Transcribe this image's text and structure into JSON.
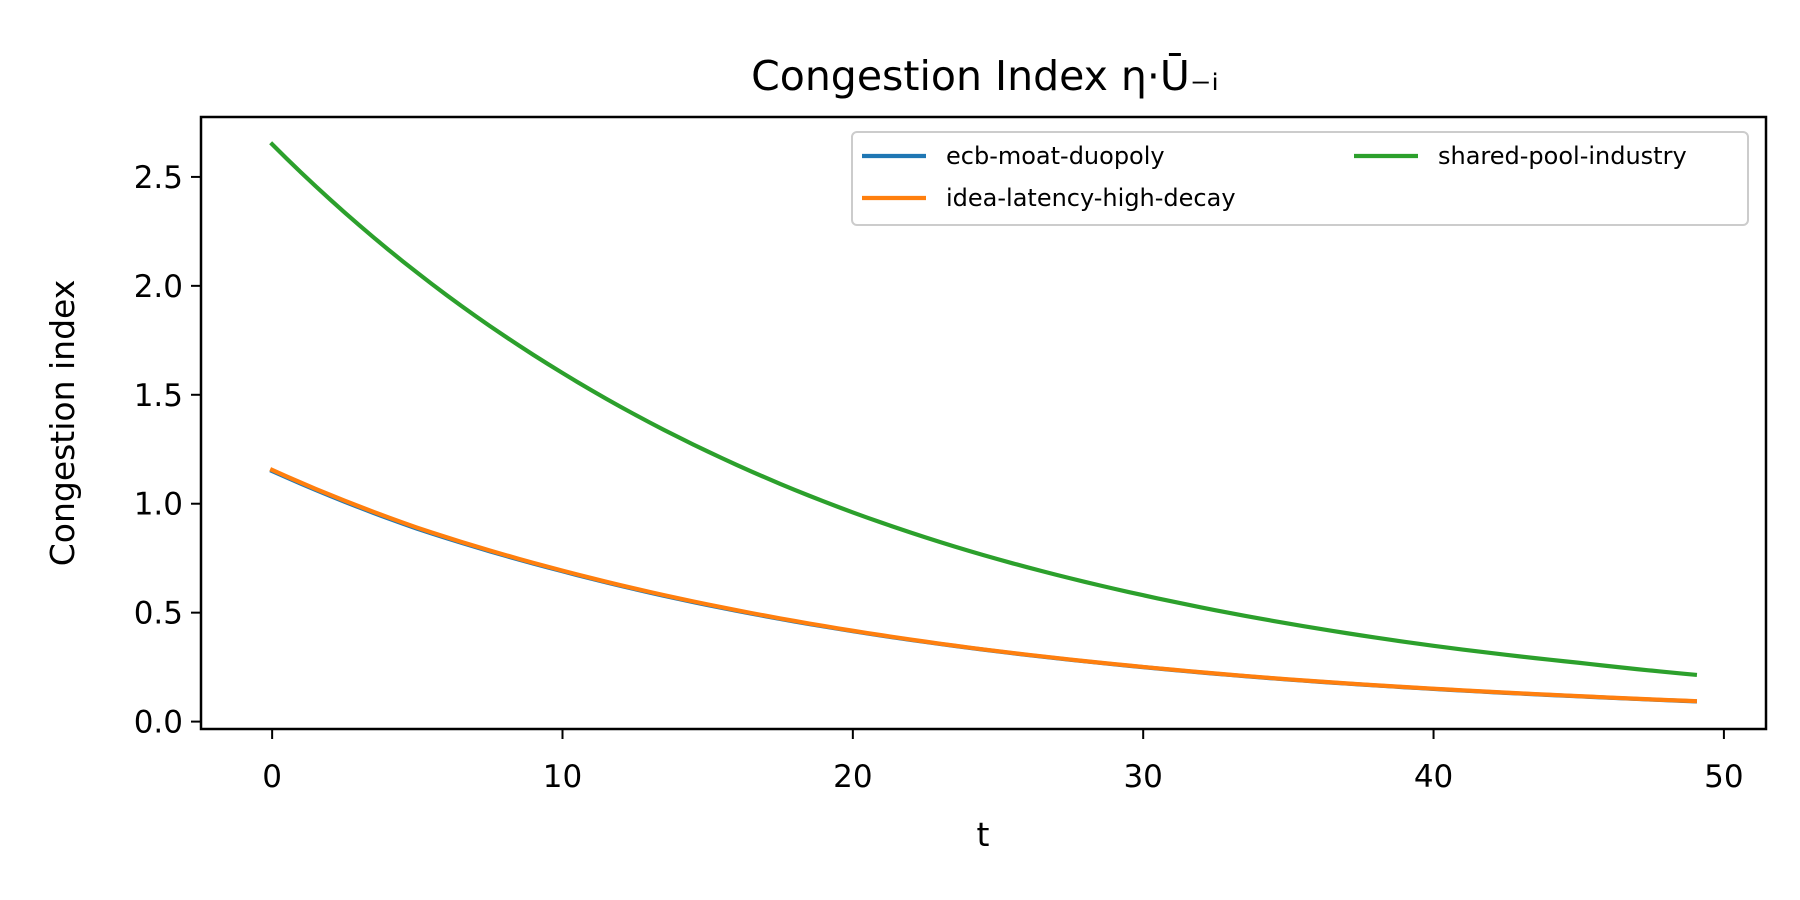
{
  "chart_data": {
    "type": "line",
    "title": "Congestion Index η·Ū₋ᵢ",
    "xlabel": "t",
    "ylabel": "Congestion index",
    "xlim": [
      -2.45,
      51.45
    ],
    "ylim": [
      -0.034,
      2.775
    ],
    "xticks": [
      0,
      10,
      20,
      30,
      40,
      50
    ],
    "yticks": [
      0.0,
      0.5,
      1.0,
      1.5,
      2.0,
      2.5
    ],
    "xtick_labels": [
      "0",
      "10",
      "20",
      "30",
      "40",
      "50"
    ],
    "ytick_labels": [
      "0.0",
      "0.5",
      "1.0",
      "1.5",
      "2.0",
      "2.5"
    ],
    "grid": false,
    "legend": {
      "placement": "top-right",
      "columns": 2
    },
    "series": [
      {
        "name": "ecb-moat-duopoly",
        "color": "#1f77b4",
        "x": [
          0,
          5,
          10,
          15,
          20,
          25,
          30,
          35,
          40,
          45,
          49
        ],
        "values": [
          1.15,
          0.885,
          0.69,
          0.535,
          0.415,
          0.322,
          0.25,
          0.193,
          0.15,
          0.116,
          0.093
        ]
      },
      {
        "name": "idea-latency-high-decay",
        "color": "#ff7f0e",
        "x": [
          0,
          5,
          10,
          15,
          20,
          25,
          30,
          35,
          40,
          45,
          49
        ],
        "values": [
          1.155,
          0.89,
          0.693,
          0.538,
          0.417,
          0.323,
          0.251,
          0.194,
          0.151,
          0.117,
          0.094
        ]
      },
      {
        "name": "shared-pool-industry",
        "color": "#2ca02c",
        "x": [
          0,
          5,
          10,
          15,
          20,
          25,
          30,
          35,
          40,
          45,
          49
        ],
        "values": [
          2.65,
          2.06,
          1.6,
          1.24,
          0.96,
          0.745,
          0.58,
          0.45,
          0.348,
          0.27,
          0.215
        ]
      }
    ]
  }
}
